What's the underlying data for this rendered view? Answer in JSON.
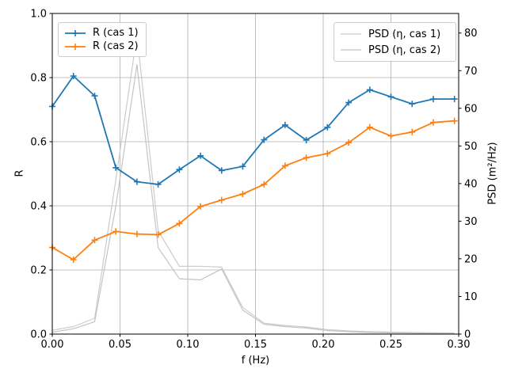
{
  "chart_data": {
    "type": "line",
    "title": "",
    "xlabel": "f (Hz)",
    "ylabel_left": "R",
    "ylabel_right": "PSD (m²/Hz)",
    "xlim": [
      0,
      0.3
    ],
    "ylim_left": [
      0,
      1.0
    ],
    "ylim_right": [
      0,
      85.2
    ],
    "grid": true,
    "legend_positions": [
      "upper left",
      "upper right"
    ],
    "x_ticks": [
      {
        "v": 0.0,
        "label": "0.00"
      },
      {
        "v": 0.05,
        "label": "0.05"
      },
      {
        "v": 0.1,
        "label": "0.10"
      },
      {
        "v": 0.15,
        "label": "0.15"
      },
      {
        "v": 0.2,
        "label": "0.20"
      },
      {
        "v": 0.25,
        "label": "0.25"
      },
      {
        "v": 0.3,
        "label": "0.30"
      }
    ],
    "y_ticks_left": [
      {
        "v": 0.0,
        "label": "0.0"
      },
      {
        "v": 0.2,
        "label": "0.2"
      },
      {
        "v": 0.4,
        "label": "0.4"
      },
      {
        "v": 0.6,
        "label": "0.6"
      },
      {
        "v": 0.8,
        "label": "0.8"
      },
      {
        "v": 1.0,
        "label": "1.0"
      }
    ],
    "y_ticks_right": [
      {
        "v": 0,
        "label": "0"
      },
      {
        "v": 10,
        "label": "10"
      },
      {
        "v": 20,
        "label": "20"
      },
      {
        "v": 30,
        "label": "30"
      },
      {
        "v": 40,
        "label": "40"
      },
      {
        "v": 50,
        "label": "50"
      },
      {
        "v": 60,
        "label": "60"
      },
      {
        "v": 70,
        "label": "70"
      },
      {
        "v": 80,
        "label": "80"
      }
    ],
    "x": [
      0.0,
      0.0156,
      0.0313,
      0.0469,
      0.0625,
      0.0781,
      0.0938,
      0.1094,
      0.125,
      0.1406,
      0.1563,
      0.1719,
      0.1875,
      0.2031,
      0.2188,
      0.2344,
      0.25,
      0.2656,
      0.2813,
      0.2969
    ],
    "series": [
      {
        "name": "R (cas 1)",
        "axis": "left",
        "color": "#1f77b4",
        "marker": "plus",
        "line_width": 1.8,
        "values": [
          0.71,
          0.805,
          0.743,
          0.519,
          0.475,
          0.467,
          0.513,
          0.556,
          0.51,
          0.523,
          0.606,
          0.652,
          0.605,
          0.645,
          0.722,
          0.762,
          0.74,
          0.718,
          0.733,
          0.733
        ]
      },
      {
        "name": "R (cas 2)",
        "axis": "left",
        "color": "#ff7f0e",
        "marker": "plus",
        "line_width": 1.8,
        "values": [
          0.27,
          0.232,
          0.293,
          0.32,
          0.312,
          0.31,
          0.345,
          0.398,
          0.418,
          0.437,
          0.467,
          0.525,
          0.55,
          0.563,
          0.597,
          0.645,
          0.618,
          0.63,
          0.66,
          0.665
        ]
      },
      {
        "name": "PSD (η, cas 1)",
        "axis": "right",
        "color": "#cccccc",
        "marker": "none",
        "line_width": 1.2,
        "values": [
          1.0,
          2.0,
          4.2,
          41.0,
          79.5,
          27.5,
          18.0,
          18.0,
          17.8,
          7.1,
          2.9,
          2.3,
          1.9,
          1.2,
          0.85,
          0.63,
          0.53,
          0.42,
          0.36,
          0.32
        ]
      },
      {
        "name": "PSD (η, cas 2)",
        "axis": "right",
        "color": "#c4c4c4",
        "marker": "none",
        "line_width": 1.2,
        "values": [
          0.5,
          1.4,
          3.3,
          34.0,
          71.6,
          23.0,
          14.7,
          14.4,
          17.3,
          6.4,
          2.6,
          2.0,
          1.6,
          0.95,
          0.63,
          0.42,
          0.32,
          0.25,
          0.21,
          0.17
        ]
      }
    ],
    "colors": {
      "background": "#ffffff",
      "grid": "#b0b0b0",
      "spine": "#000000",
      "tick_label": "#000000"
    }
  }
}
